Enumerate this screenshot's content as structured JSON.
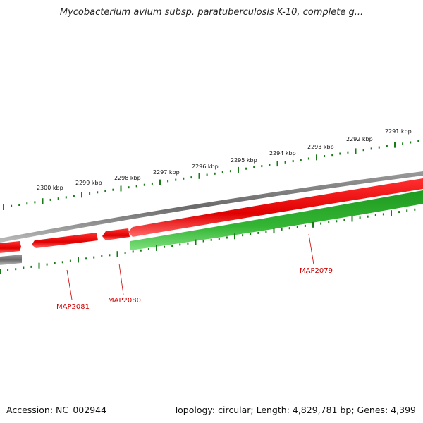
{
  "title": "Mycobacterium avium subsp. paratuberculosis K-10, complete g...",
  "footer": {
    "accession": "Accession: NC_002944",
    "summary": "Topology: circular; Length: 4,829,781 bp; Genes: 4,399"
  },
  "ticks": [
    {
      "label": "2291 kbp",
      "kbp": 2291
    },
    {
      "label": "2292 kbp",
      "kbp": 2292
    },
    {
      "label": "2293 kbp",
      "kbp": 2293
    },
    {
      "label": "2294 kbp",
      "kbp": 2294
    },
    {
      "label": "2295 kbp",
      "kbp": 2295
    },
    {
      "label": "2296 kbp",
      "kbp": 2296
    },
    {
      "label": "2297 kbp",
      "kbp": 2297
    },
    {
      "label": "2298 kbp",
      "kbp": 2298
    },
    {
      "label": "2299 kbp",
      "kbp": 2299
    },
    {
      "label": "2300 kbp",
      "kbp": 2300
    }
  ],
  "genes": [
    {
      "label": "MAP2079",
      "color": "#cc0000"
    },
    {
      "label": "MAP2080",
      "color": "#cc0000"
    },
    {
      "label": "MAP2081",
      "color": "#cc0000"
    }
  ],
  "colors": {
    "forward": "#e00000",
    "reverse": "#2ea82e",
    "backbone": "#808080",
    "ticks": "#1a7a1a"
  }
}
